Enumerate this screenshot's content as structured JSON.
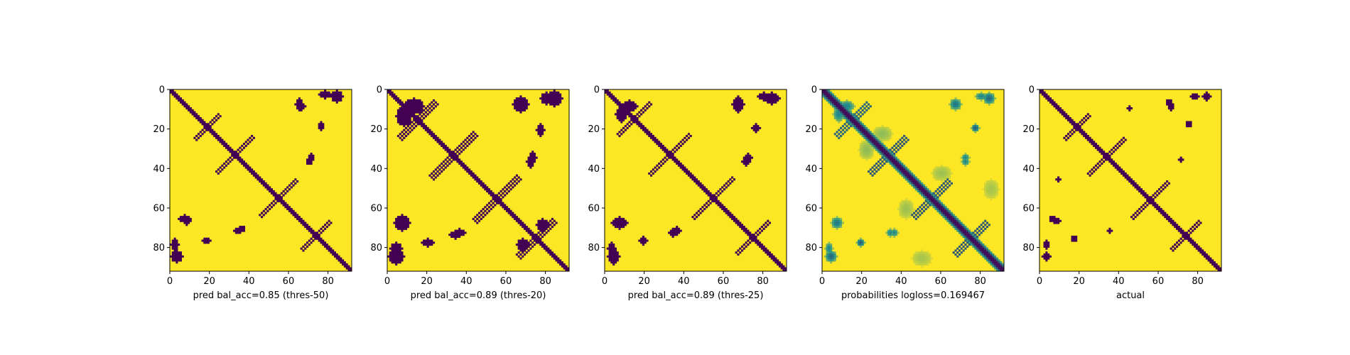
{
  "chart_data": [
    {
      "type": "heatmap",
      "xlabel": "pred bal_acc=0.85 (thres-50)",
      "x_ticks": [
        0,
        20,
        40,
        60,
        80
      ],
      "y_ticks": [
        0,
        20,
        40,
        60,
        80
      ],
      "xlim": [
        0,
        92
      ],
      "ylim": [
        92,
        0
      ],
      "colormap": "viridis",
      "binary": true,
      "colors": {
        "low": "#440154",
        "high": "#fde725"
      },
      "matrix_size": 92,
      "value_range": [
        0,
        1
      ],
      "diagonal_band": {
        "from": 0,
        "to": 92,
        "value": 0
      },
      "features": [
        {
          "kind": "anti-arm",
          "cx": 33,
          "cy": 33,
          "len": 9,
          "width": 1.2
        },
        {
          "kind": "anti-arm",
          "cx": 55,
          "cy": 55,
          "len": 9,
          "width": 1.2
        },
        {
          "kind": "anti-arm",
          "cx": 74,
          "cy": 74,
          "len": 7,
          "width": 1.2
        },
        {
          "kind": "anti-arm",
          "cx": 18,
          "cy": 18,
          "len": 6,
          "width": 1
        },
        {
          "kind": "blob",
          "cx": 65,
          "cy": 7,
          "rx": 2,
          "ry": 3
        },
        {
          "kind": "blob",
          "cx": 78,
          "cy": 2,
          "rx": 3,
          "ry": 2
        },
        {
          "kind": "blob",
          "cx": 76,
          "cy": 18,
          "rx": 1.5,
          "ry": 2
        },
        {
          "kind": "blob",
          "cx": 8,
          "cy": 66,
          "rx": 2,
          "ry": 2
        },
        {
          "kind": "blob",
          "cx": 18,
          "cy": 76,
          "rx": 2,
          "ry": 1.5
        },
        {
          "kind": "blob",
          "cx": 34,
          "cy": 71,
          "rx": 2,
          "ry": 1.5
        },
        {
          "kind": "blob",
          "cx": 70,
          "cy": 36,
          "rx": 1.5,
          "ry": 1.5
        },
        {
          "kind": "blob",
          "cx": 3,
          "cy": 84,
          "rx": 3,
          "ry": 3
        },
        {
          "kind": "blob",
          "cx": 84,
          "cy": 3,
          "rx": 3,
          "ry": 3
        }
      ]
    },
    {
      "type": "heatmap",
      "xlabel": "pred bal_acc=0.89 (thres-20)",
      "x_ticks": [
        0,
        20,
        40,
        60,
        80
      ],
      "y_ticks": [
        0,
        20,
        40,
        60,
        80
      ],
      "xlim": [
        0,
        92
      ],
      "ylim": [
        92,
        0
      ],
      "colormap": "viridis",
      "binary": true,
      "colors": {
        "low": "#440154",
        "high": "#fde725"
      },
      "matrix_size": 92,
      "value_range": [
        0,
        1
      ],
      "diagonal_band": {
        "from": 0,
        "to": 92,
        "value": 0
      },
      "features": [
        {
          "kind": "anti-arm",
          "cx": 33,
          "cy": 33,
          "len": 11,
          "width": 1.5
        },
        {
          "kind": "anti-arm",
          "cx": 55,
          "cy": 55,
          "len": 11,
          "width": 1.5
        },
        {
          "kind": "anti-arm",
          "cx": 75,
          "cy": 75,
          "len": 9,
          "width": 1.5
        },
        {
          "kind": "anti-arm",
          "cx": 15,
          "cy": 15,
          "len": 9,
          "width": 1.5
        },
        {
          "kind": "blob",
          "cx": 13,
          "cy": 8,
          "rx": 5,
          "ry": 4
        },
        {
          "kind": "blob",
          "cx": 8,
          "cy": 13,
          "rx": 4,
          "ry": 5
        },
        {
          "kind": "blob",
          "cx": 67,
          "cy": 7,
          "rx": 4,
          "ry": 4
        },
        {
          "kind": "blob",
          "cx": 80,
          "cy": 4,
          "rx": 3,
          "ry": 3
        },
        {
          "kind": "blob",
          "cx": 77,
          "cy": 20,
          "rx": 2,
          "ry": 3
        },
        {
          "kind": "blob",
          "cx": 7,
          "cy": 67,
          "rx": 4,
          "ry": 4
        },
        {
          "kind": "blob",
          "cx": 20,
          "cy": 77,
          "rx": 3,
          "ry": 2
        },
        {
          "kind": "blob",
          "cx": 34,
          "cy": 73,
          "rx": 3,
          "ry": 2
        },
        {
          "kind": "blob",
          "cx": 72,
          "cy": 36,
          "rx": 2,
          "ry": 3
        },
        {
          "kind": "blob",
          "cx": 4,
          "cy": 84,
          "rx": 4,
          "ry": 4
        },
        {
          "kind": "blob",
          "cx": 84,
          "cy": 4,
          "rx": 4,
          "ry": 4
        },
        {
          "kind": "blob",
          "cx": 78,
          "cy": 68,
          "rx": 3,
          "ry": 3
        }
      ]
    },
    {
      "type": "heatmap",
      "xlabel": "pred bal_acc=0.89 (thres-25)",
      "x_ticks": [
        0,
        20,
        40,
        60,
        80
      ],
      "y_ticks": [
        0,
        20,
        40,
        60,
        80
      ],
      "xlim": [
        0,
        92
      ],
      "ylim": [
        92,
        0
      ],
      "colormap": "viridis",
      "binary": true,
      "colors": {
        "low": "#440154",
        "high": "#fde725"
      },
      "matrix_size": 92,
      "value_range": [
        0,
        1
      ],
      "diagonal_band": {
        "from": 0,
        "to": 92,
        "value": 0
      },
      "features": [
        {
          "kind": "anti-arm",
          "cx": 33,
          "cy": 33,
          "len": 10,
          "width": 1.4
        },
        {
          "kind": "anti-arm",
          "cx": 55,
          "cy": 55,
          "len": 10,
          "width": 1.4
        },
        {
          "kind": "anti-arm",
          "cx": 75,
          "cy": 75,
          "len": 8,
          "width": 1.4
        },
        {
          "kind": "anti-arm",
          "cx": 15,
          "cy": 15,
          "len": 8,
          "width": 1.3
        },
        {
          "kind": "blob",
          "cx": 12,
          "cy": 8,
          "rx": 4,
          "ry": 3
        },
        {
          "kind": "blob",
          "cx": 8,
          "cy": 12,
          "rx": 3,
          "ry": 4
        },
        {
          "kind": "blob",
          "cx": 67,
          "cy": 7,
          "rx": 3,
          "ry": 4
        },
        {
          "kind": "blob",
          "cx": 80,
          "cy": 3,
          "rx": 3,
          "ry": 2
        },
        {
          "kind": "blob",
          "cx": 76,
          "cy": 19,
          "rx": 2,
          "ry": 2
        },
        {
          "kind": "blob",
          "cx": 7,
          "cy": 67,
          "rx": 3,
          "ry": 3
        },
        {
          "kind": "blob",
          "cx": 19,
          "cy": 76,
          "rx": 2,
          "ry": 2
        },
        {
          "kind": "blob",
          "cx": 34,
          "cy": 72,
          "rx": 2,
          "ry": 2
        },
        {
          "kind": "blob",
          "cx": 71,
          "cy": 36,
          "rx": 2,
          "ry": 2
        },
        {
          "kind": "blob",
          "cx": 4,
          "cy": 84,
          "rx": 3,
          "ry": 4
        },
        {
          "kind": "blob",
          "cx": 84,
          "cy": 4,
          "rx": 4,
          "ry": 3
        }
      ]
    },
    {
      "type": "heatmap",
      "xlabel": "probabilities logloss=0.169467",
      "x_ticks": [
        0,
        20,
        40,
        60,
        80
      ],
      "y_ticks": [
        0,
        20,
        40,
        60,
        80
      ],
      "xlim": [
        0,
        92
      ],
      "ylim": [
        92,
        0
      ],
      "colormap": "viridis",
      "binary": false,
      "colors": {
        "low": "#440154",
        "mid": "#21918c",
        "high": "#fde725"
      },
      "matrix_size": 92,
      "value_range": [
        0,
        1
      ],
      "diagonal_band": {
        "from": 0,
        "to": 92,
        "value": 0.05
      },
      "features": [
        {
          "kind": "anti-arm",
          "cx": 33,
          "cy": 33,
          "len": 9,
          "width": 1.5,
          "value": 0.3
        },
        {
          "kind": "anti-arm",
          "cx": 55,
          "cy": 55,
          "len": 9,
          "width": 1.5,
          "value": 0.3
        },
        {
          "kind": "anti-arm",
          "cx": 75,
          "cy": 75,
          "len": 8,
          "width": 1.5,
          "value": 0.3
        },
        {
          "kind": "anti-arm",
          "cx": 15,
          "cy": 15,
          "len": 8,
          "width": 1.5,
          "value": 0.35
        },
        {
          "kind": "blob",
          "cx": 12,
          "cy": 8,
          "rx": 4,
          "ry": 3,
          "value": 0.45
        },
        {
          "kind": "blob",
          "cx": 8,
          "cy": 12,
          "rx": 3,
          "ry": 4,
          "value": 0.45
        },
        {
          "kind": "blob",
          "cx": 67,
          "cy": 7,
          "rx": 3,
          "ry": 3,
          "value": 0.4
        },
        {
          "kind": "blob",
          "cx": 80,
          "cy": 3,
          "rx": 3,
          "ry": 2,
          "value": 0.45
        },
        {
          "kind": "blob",
          "cx": 77,
          "cy": 19,
          "rx": 2,
          "ry": 2,
          "value": 0.3
        },
        {
          "kind": "blob",
          "cx": 7,
          "cy": 67,
          "rx": 3,
          "ry": 3,
          "value": 0.4
        },
        {
          "kind": "blob",
          "cx": 19,
          "cy": 77,
          "rx": 2,
          "ry": 2,
          "value": 0.3
        },
        {
          "kind": "blob",
          "cx": 34,
          "cy": 72,
          "rx": 2,
          "ry": 2,
          "value": 0.45
        },
        {
          "kind": "blob",
          "cx": 72,
          "cy": 36,
          "rx": 2,
          "ry": 2,
          "value": 0.45
        },
        {
          "kind": "blob",
          "cx": 4,
          "cy": 84,
          "rx": 3,
          "ry": 3,
          "value": 0.35
        },
        {
          "kind": "blob",
          "cx": 84,
          "cy": 4,
          "rx": 3,
          "ry": 3,
          "value": 0.35
        },
        {
          "kind": "blob",
          "cx": 30,
          "cy": 22,
          "rx": 5,
          "ry": 4,
          "value": 0.75
        },
        {
          "kind": "blob",
          "cx": 22,
          "cy": 30,
          "rx": 4,
          "ry": 5,
          "value": 0.75
        },
        {
          "kind": "blob",
          "cx": 60,
          "cy": 42,
          "rx": 5,
          "ry": 4,
          "value": 0.78
        },
        {
          "kind": "blob",
          "cx": 42,
          "cy": 60,
          "rx": 4,
          "ry": 5,
          "value": 0.78
        },
        {
          "kind": "blob",
          "cx": 85,
          "cy": 50,
          "rx": 4,
          "ry": 5,
          "value": 0.8
        },
        {
          "kind": "blob",
          "cx": 50,
          "cy": 85,
          "rx": 5,
          "ry": 4,
          "value": 0.8
        }
      ]
    },
    {
      "type": "heatmap",
      "xlabel": "actual",
      "x_ticks": [
        0,
        20,
        40,
        60,
        80
      ],
      "y_ticks": [
        0,
        20,
        40,
        60,
        80
      ],
      "xlim": [
        0,
        92
      ],
      "ylim": [
        92,
        0
      ],
      "colormap": "viridis",
      "binary": true,
      "colors": {
        "low": "#440154",
        "high": "#fde725"
      },
      "matrix_size": 92,
      "value_range": [
        0,
        1
      ],
      "diagonal_band": {
        "from": 0,
        "to": 92,
        "value": 0
      },
      "features": [
        {
          "kind": "anti-arm",
          "cx": 33,
          "cy": 33,
          "len": 9,
          "width": 1
        },
        {
          "kind": "anti-arm",
          "cx": 55,
          "cy": 55,
          "len": 9,
          "width": 1
        },
        {
          "kind": "anti-arm",
          "cx": 73,
          "cy": 73,
          "len": 7,
          "width": 1
        },
        {
          "kind": "anti-arm",
          "cx": 18,
          "cy": 18,
          "len": 6,
          "width": 1
        },
        {
          "kind": "blob",
          "cx": 66,
          "cy": 8,
          "rx": 1.5,
          "ry": 2
        },
        {
          "kind": "blob",
          "cx": 78,
          "cy": 3,
          "rx": 2,
          "ry": 1.5
        },
        {
          "kind": "blob",
          "cx": 45,
          "cy": 9,
          "rx": 1,
          "ry": 1
        },
        {
          "kind": "blob",
          "cx": 6,
          "cy": 65,
          "rx": 1.5,
          "ry": 1.5
        },
        {
          "kind": "blob",
          "cx": 17,
          "cy": 75,
          "rx": 1.5,
          "ry": 1.5
        },
        {
          "kind": "blob",
          "cx": 3,
          "cy": 84,
          "rx": 2,
          "ry": 2
        },
        {
          "kind": "blob",
          "cx": 84,
          "cy": 3,
          "rx": 2,
          "ry": 2
        },
        {
          "kind": "blob",
          "cx": 71,
          "cy": 35,
          "rx": 1,
          "ry": 1.5
        }
      ]
    }
  ]
}
